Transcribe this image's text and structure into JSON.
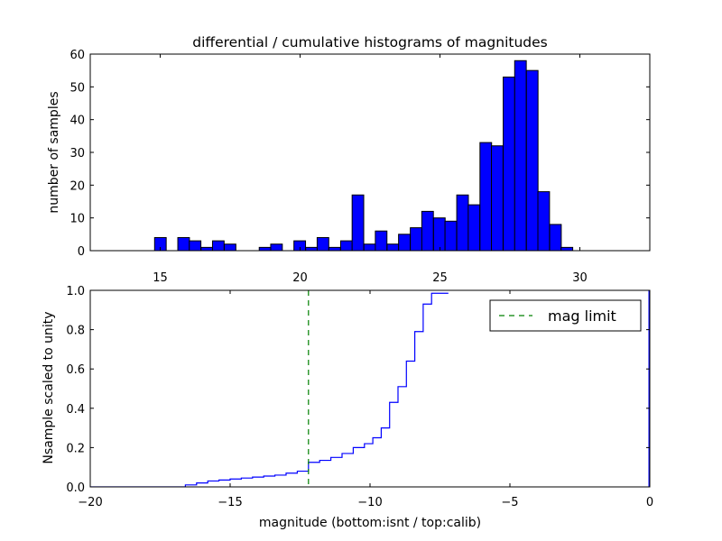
{
  "chart_data": [
    {
      "type": "bar",
      "title": "differential / cumulative histograms of magnitudes",
      "ylabel": "number of samples",
      "xlim": [
        12.5,
        32.5
      ],
      "ylim": [
        0,
        60
      ],
      "xticks": [
        15,
        20,
        25,
        30
      ],
      "yticks": [
        0,
        10,
        20,
        30,
        40,
        50,
        60
      ],
      "bar_color": "#0000ff",
      "bin_width": 0.415,
      "bins": [
        {
          "x": 14.8,
          "count": 4
        },
        {
          "x": 15.63,
          "count": 4
        },
        {
          "x": 16.04,
          "count": 3
        },
        {
          "x": 16.46,
          "count": 1
        },
        {
          "x": 16.87,
          "count": 3
        },
        {
          "x": 17.29,
          "count": 2
        },
        {
          "x": 18.54,
          "count": 1
        },
        {
          "x": 18.95,
          "count": 2
        },
        {
          "x": 19.78,
          "count": 3
        },
        {
          "x": 20.2,
          "count": 1
        },
        {
          "x": 20.61,
          "count": 4
        },
        {
          "x": 21.03,
          "count": 1
        },
        {
          "x": 21.45,
          "count": 3
        },
        {
          "x": 21.86,
          "count": 17
        },
        {
          "x": 22.28,
          "count": 2
        },
        {
          "x": 22.69,
          "count": 6
        },
        {
          "x": 23.11,
          "count": 2
        },
        {
          "x": 23.52,
          "count": 5
        },
        {
          "x": 23.94,
          "count": 7
        },
        {
          "x": 24.35,
          "count": 12
        },
        {
          "x": 24.77,
          "count": 10
        },
        {
          "x": 25.18,
          "count": 9
        },
        {
          "x": 25.6,
          "count": 17
        },
        {
          "x": 26.01,
          "count": 14
        },
        {
          "x": 26.43,
          "count": 33
        },
        {
          "x": 26.84,
          "count": 32
        },
        {
          "x": 27.26,
          "count": 53
        },
        {
          "x": 27.67,
          "count": 58
        },
        {
          "x": 28.09,
          "count": 55
        },
        {
          "x": 28.5,
          "count": 18
        },
        {
          "x": 28.92,
          "count": 8
        },
        {
          "x": 29.33,
          "count": 1
        }
      ]
    },
    {
      "type": "line",
      "xlabel": "magnitude (bottom:isnt / top:calib)",
      "ylabel": "Nsample scaled to unity",
      "xlim": [
        -20,
        0
      ],
      "ylim": [
        0,
        1.0
      ],
      "xticks": [
        -20,
        -15,
        -10,
        -5,
        0
      ],
      "xtick_labels": [
        "−20",
        "−15",
        "−10",
        "−5",
        "0"
      ],
      "yticks": [
        0.0,
        0.2,
        0.4,
        0.6,
        0.8,
        1.0
      ],
      "ytick_labels": [
        "0.0",
        "0.2",
        "0.4",
        "0.6",
        "0.8",
        "1.0"
      ],
      "series": [
        {
          "color": "#0000ff",
          "style": "step",
          "x": [
            -20.0,
            -16.6,
            -16.2,
            -15.8,
            -15.4,
            -15.0,
            -14.6,
            -14.2,
            -13.8,
            -13.4,
            -13.0,
            -12.6,
            -12.2,
            -11.8,
            -11.4,
            -11.0,
            -10.6,
            -10.2,
            -9.9,
            -9.6,
            -9.3,
            -9.0,
            -8.7,
            -8.4,
            -8.1,
            -7.8
          ],
          "y": [
            0.0,
            0.01,
            0.02,
            0.03,
            0.035,
            0.04,
            0.045,
            0.05,
            0.055,
            0.06,
            0.07,
            0.08,
            0.125,
            0.135,
            0.15,
            0.17,
            0.2,
            0.22,
            0.25,
            0.3,
            0.43,
            0.51,
            0.64,
            0.79,
            0.93,
            0.985
          ]
        },
        {
          "name": "mag limit",
          "color": "#008000",
          "style": "dashed-vertical",
          "x": -12.2
        }
      ],
      "legend": {
        "location": "upper-right",
        "entries": [
          "mag limit"
        ]
      }
    }
  ]
}
